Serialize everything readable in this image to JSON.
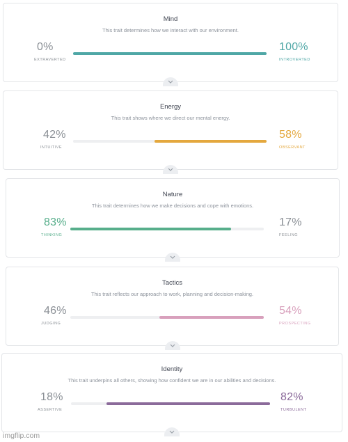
{
  "watermark": "imgflip.com",
  "traits": [
    {
      "title": "Mind",
      "description": "This trait determines how we interact with our environment.",
      "left": {
        "percent": "0%",
        "label": "EXTRAVERTED"
      },
      "right": {
        "percent": "100%",
        "label": "INTROVERTED"
      },
      "dominant": "right",
      "value": 1.0,
      "color": "#4fa7a6"
    },
    {
      "title": "Energy",
      "description": "This trait shows where we direct our mental energy.",
      "left": {
        "percent": "42%",
        "label": "INTUITIVE"
      },
      "right": {
        "percent": "58%",
        "label": "OBSERVANT"
      },
      "dominant": "right",
      "value": 0.58,
      "color": "#e4a83e"
    },
    {
      "title": "Nature",
      "description": "This trait determines how we make decisions and cope with emotions.",
      "left": {
        "percent": "83%",
        "label": "THINKING"
      },
      "right": {
        "percent": "17%",
        "label": "FEELING"
      },
      "dominant": "left",
      "value": 0.83,
      "color": "#57ae8b"
    },
    {
      "title": "Tactics",
      "description": "This trait reflects our approach to work, planning and decision-making.",
      "left": {
        "percent": "46%",
        "label": "JUDGING"
      },
      "right": {
        "percent": "54%",
        "label": "PROSPECTING"
      },
      "dominant": "right",
      "value": 0.54,
      "color": "#d8a0bc"
    },
    {
      "title": "Identity",
      "description": "This trait underpins all others, showing how confident we are in our abilities and decisions.",
      "left": {
        "percent": "18%",
        "label": "ASSERTIVE"
      },
      "right": {
        "percent": "82%",
        "label": "TURBULENT"
      },
      "dominant": "right",
      "value": 0.82,
      "color": "#8b6a9a"
    }
  ]
}
